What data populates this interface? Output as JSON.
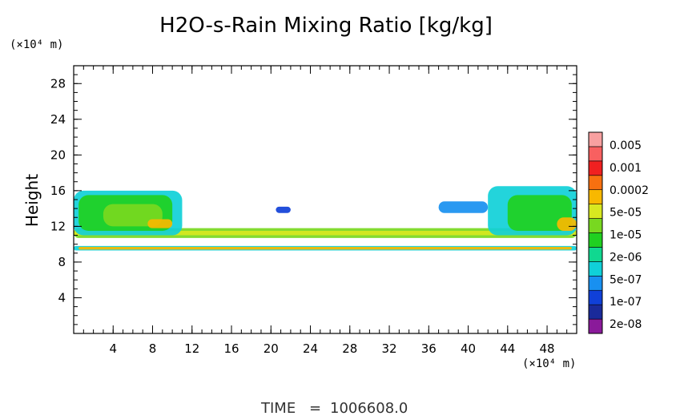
{
  "chart_data": {
    "type": "heatmap",
    "title": "H2O-s-Rain Mixing Ratio [kg/kg]",
    "ylabel": "Height",
    "y_unit": "(×10⁴ m)",
    "x_unit": "(×10⁴ m)",
    "xlim": [
      0,
      51
    ],
    "ylim": [
      0,
      30
    ],
    "x_ticks": [
      "4",
      "8",
      "12",
      "16",
      "20",
      "24",
      "28",
      "32",
      "36",
      "40",
      "44",
      "48"
    ],
    "y_ticks": [
      "4",
      "8",
      "12",
      "16",
      "20",
      "24",
      "28"
    ],
    "colorbar": {
      "labels": [
        "0.005",
        "0.001",
        "0.0002",
        "5e-05",
        "1e-05",
        "2e-06",
        "5e-07",
        "1e-07",
        "2e-08"
      ],
      "colors": [
        "#8a1a9a",
        "#1a2a9a",
        "#1040d8",
        "#1890f0",
        "#10d0d8",
        "#10d890",
        "#20d020",
        "#78d820",
        "#d8e820",
        "#f8b800",
        "#f87010",
        "#f02020",
        "#f86060",
        "#f8a0a0"
      ]
    },
    "fields": [
      {
        "x": [
          0,
          51
        ],
        "y": [
          9.3,
          9.8
        ],
        "level": 4
      },
      {
        "x": [
          0.5,
          50.5
        ],
        "y": [
          9.4,
          9.7
        ],
        "level": 9
      },
      {
        "x": [
          0,
          51
        ],
        "y": [
          10.7,
          11.8
        ],
        "level": 7
      },
      {
        "x": [
          0,
          51
        ],
        "y": [
          11.0,
          11.5
        ],
        "level": 8
      },
      {
        "x": [
          0,
          11
        ],
        "y": [
          11,
          16
        ],
        "level": 4
      },
      {
        "x": [
          0.5,
          10
        ],
        "y": [
          11.5,
          15.5
        ],
        "level": 6
      },
      {
        "x": [
          3,
          9
        ],
        "y": [
          12,
          14.5
        ],
        "level": 7
      },
      {
        "x": [
          7.5,
          10
        ],
        "y": [
          11.8,
          12.8
        ],
        "level": 9
      },
      {
        "x": [
          42,
          51
        ],
        "y": [
          11,
          16.5
        ],
        "level": 4
      },
      {
        "x": [
          44,
          50.5
        ],
        "y": [
          11.5,
          15.5
        ],
        "level": 6
      },
      {
        "x": [
          49,
          51
        ],
        "y": [
          11.5,
          13
        ],
        "level": 9
      },
      {
        "x": [
          37,
          42
        ],
        "y": [
          13.5,
          14.8
        ],
        "level": 3
      },
      {
        "x": [
          20.5,
          22
        ],
        "y": [
          13.5,
          14.2
        ],
        "level": 2
      }
    ]
  },
  "footer": {
    "time_label": "TIME",
    "time_eq": "=",
    "time_value": "1006608.0"
  }
}
